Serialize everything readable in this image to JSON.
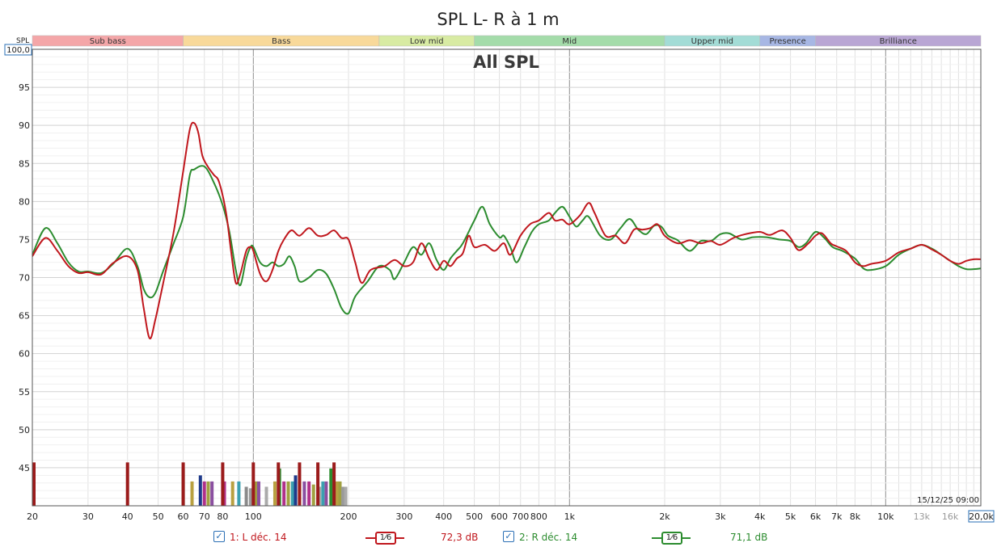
{
  "title": "SPL L- R à 1 m",
  "overlay_label": "All SPL",
  "y_axis_unit": "SPL",
  "y_top_value": "100,0",
  "x_right_value": "20,0k",
  "timestamp": "15/12/25 09:00",
  "bands": [
    {
      "label": "Sub bass",
      "from": 20,
      "to": 60,
      "color": "#f4a6a8"
    },
    {
      "label": "Bass",
      "from": 60,
      "to": 250,
      "color": "#f8d99a"
    },
    {
      "label": "Low mid",
      "from": 250,
      "to": 500,
      "color": "#d8eba3"
    },
    {
      "label": "Mid",
      "from": 500,
      "to": 2000,
      "color": "#a4dcaa"
    },
    {
      "label": "Upper mid",
      "from": 2000,
      "to": 4000,
      "color": "#a3dcd6"
    },
    {
      "label": "Presence",
      "from": 4000,
      "to": 6000,
      "color": "#a7b7e4"
    },
    {
      "label": "Brilliance",
      "from": 6000,
      "to": 20000,
      "color": "#b9a6d4"
    }
  ],
  "chart_data": {
    "type": "line",
    "title": "SPL L- R à 1 m",
    "xlabel": "",
    "ylabel": "SPL",
    "x_scale": "log",
    "xlim": [
      20,
      20000
    ],
    "ylim": [
      40,
      100
    ],
    "grid": true,
    "x_ticks": [
      {
        "v": 20,
        "label": "20"
      },
      {
        "v": 30,
        "label": "30"
      },
      {
        "v": 40,
        "label": "40"
      },
      {
        "v": 50,
        "label": "50"
      },
      {
        "v": 60,
        "label": "60"
      },
      {
        "v": 70,
        "label": "70"
      },
      {
        "v": 80,
        "label": "80"
      },
      {
        "v": 100,
        "label": "100"
      },
      {
        "v": 200,
        "label": "200"
      },
      {
        "v": 300,
        "label": "300"
      },
      {
        "v": 400,
        "label": "400"
      },
      {
        "v": 500,
        "label": "500"
      },
      {
        "v": 600,
        "label": "600"
      },
      {
        "v": 700,
        "label": "700"
      },
      {
        "v": 800,
        "label": "800"
      },
      {
        "v": 1000,
        "label": "1k"
      },
      {
        "v": 2000,
        "label": "2k"
      },
      {
        "v": 3000,
        "label": "3k"
      },
      {
        "v": 4000,
        "label": "4k"
      },
      {
        "v": 5000,
        "label": "5k"
      },
      {
        "v": 6000,
        "label": "6k"
      },
      {
        "v": 7000,
        "label": "7k"
      },
      {
        "v": 8000,
        "label": "8k"
      },
      {
        "v": 10000,
        "label": "10k"
      },
      {
        "v": 13000,
        "label": "13k",
        "muted": true
      },
      {
        "v": 16000,
        "label": "16k",
        "muted": true
      }
    ],
    "y_ticks": [
      45,
      50,
      55,
      60,
      65,
      70,
      75,
      80,
      85,
      90,
      95
    ],
    "series": [
      {
        "name": "1: L déc. 14",
        "color": "#c0171d",
        "smoothing": "1/6",
        "level": "72,3 dB",
        "points": [
          [
            20,
            72.8
          ],
          [
            22,
            75.2
          ],
          [
            24,
            73.5
          ],
          [
            26,
            71.5
          ],
          [
            28,
            70.6
          ],
          [
            30,
            70.7
          ],
          [
            33,
            70.4
          ],
          [
            36,
            71.9
          ],
          [
            40,
            72.8
          ],
          [
            43,
            71.0
          ],
          [
            45,
            66.0
          ],
          [
            47,
            62.0
          ],
          [
            49,
            64.5
          ],
          [
            52,
            69.5
          ],
          [
            56,
            76.0
          ],
          [
            60,
            84.0
          ],
          [
            63,
            89.5
          ],
          [
            65,
            90.3
          ],
          [
            67,
            89.0
          ],
          [
            69,
            86.0
          ],
          [
            72,
            84.5
          ],
          [
            75,
            83.5
          ],
          [
            78,
            82.5
          ],
          [
            82,
            78.5
          ],
          [
            85,
            73.5
          ],
          [
            88,
            69.3
          ],
          [
            91,
            70.5
          ],
          [
            95,
            73.5
          ],
          [
            98,
            74.0
          ],
          [
            100,
            73.5
          ],
          [
            105,
            70.5
          ],
          [
            110,
            69.5
          ],
          [
            115,
            71.0
          ],
          [
            120,
            73.5
          ],
          [
            125,
            75.0
          ],
          [
            132,
            76.2
          ],
          [
            140,
            75.5
          ],
          [
            150,
            76.5
          ],
          [
            160,
            75.5
          ],
          [
            170,
            75.6
          ],
          [
            180,
            76.2
          ],
          [
            190,
            75.2
          ],
          [
            200,
            75.0
          ],
          [
            210,
            72.0
          ],
          [
            220,
            69.3
          ],
          [
            235,
            71.0
          ],
          [
            260,
            71.5
          ],
          [
            280,
            72.3
          ],
          [
            300,
            71.5
          ],
          [
            320,
            72.0
          ],
          [
            340,
            74.5
          ],
          [
            360,
            72.5
          ],
          [
            380,
            71.0
          ],
          [
            400,
            72.2
          ],
          [
            420,
            71.5
          ],
          [
            440,
            72.5
          ],
          [
            460,
            73.2
          ],
          [
            480,
            75.5
          ],
          [
            500,
            74.0
          ],
          [
            540,
            74.3
          ],
          [
            580,
            73.5
          ],
          [
            620,
            74.5
          ],
          [
            650,
            73.0
          ],
          [
            700,
            75.5
          ],
          [
            750,
            77.0
          ],
          [
            800,
            77.5
          ],
          [
            860,
            78.5
          ],
          [
            900,
            77.5
          ],
          [
            950,
            77.6
          ],
          [
            1000,
            77.0
          ],
          [
            1080,
            78.2
          ],
          [
            1150,
            79.8
          ],
          [
            1200,
            78.5
          ],
          [
            1300,
            75.5
          ],
          [
            1400,
            75.5
          ],
          [
            1500,
            74.5
          ],
          [
            1600,
            76.3
          ],
          [
            1700,
            76.3
          ],
          [
            1800,
            76.5
          ],
          [
            1900,
            77.0
          ],
          [
            2000,
            75.5
          ],
          [
            2200,
            74.5
          ],
          [
            2400,
            74.9
          ],
          [
            2600,
            74.5
          ],
          [
            2800,
            74.8
          ],
          [
            3000,
            74.3
          ],
          [
            3300,
            75.2
          ],
          [
            3600,
            75.7
          ],
          [
            4000,
            76.0
          ],
          [
            4300,
            75.6
          ],
          [
            4700,
            76.2
          ],
          [
            5000,
            75.2
          ],
          [
            5300,
            73.6
          ],
          [
            5700,
            74.5
          ],
          [
            6000,
            75.5
          ],
          [
            6300,
            75.8
          ],
          [
            6700,
            74.5
          ],
          [
            7000,
            74.1
          ],
          [
            7500,
            73.5
          ],
          [
            8000,
            72.0
          ],
          [
            8500,
            71.5
          ],
          [
            9000,
            71.8
          ],
          [
            10000,
            72.2
          ],
          [
            11000,
            73.3
          ],
          [
            12000,
            73.8
          ],
          [
            13000,
            74.3
          ],
          [
            14000,
            73.7
          ],
          [
            15000,
            73.0
          ],
          [
            16000,
            72.2
          ],
          [
            17000,
            71.8
          ],
          [
            18000,
            72.2
          ],
          [
            19000,
            72.4
          ],
          [
            20000,
            72.4
          ]
        ]
      },
      {
        "name": "2: R déc. 14",
        "color": "#2c8c2f",
        "smoothing": "1/6",
        "level": "71,1 dB",
        "points": [
          [
            20,
            73.0
          ],
          [
            22,
            76.5
          ],
          [
            24,
            74.5
          ],
          [
            26,
            72.0
          ],
          [
            28,
            70.8
          ],
          [
            30,
            70.8
          ],
          [
            33,
            70.6
          ],
          [
            36,
            71.8
          ],
          [
            40,
            73.8
          ],
          [
            43,
            71.5
          ],
          [
            45,
            68.5
          ],
          [
            47,
            67.4
          ],
          [
            49,
            68.0
          ],
          [
            52,
            71.0
          ],
          [
            56,
            74.5
          ],
          [
            60,
            78.0
          ],
          [
            63,
            83.5
          ],
          [
            65,
            84.2
          ],
          [
            70,
            84.6
          ],
          [
            75,
            82.5
          ],
          [
            80,
            79.5
          ],
          [
            84,
            76.0
          ],
          [
            88,
            71.0
          ],
          [
            91,
            69.0
          ],
          [
            95,
            72.5
          ],
          [
            98,
            74.0
          ],
          [
            100,
            74.0
          ],
          [
            105,
            72.0
          ],
          [
            110,
            71.5
          ],
          [
            115,
            72.0
          ],
          [
            120,
            71.5
          ],
          [
            125,
            71.8
          ],
          [
            130,
            72.8
          ],
          [
            135,
            71.5
          ],
          [
            140,
            69.5
          ],
          [
            150,
            70.0
          ],
          [
            160,
            71.0
          ],
          [
            170,
            70.5
          ],
          [
            180,
            68.5
          ],
          [
            190,
            66.0
          ],
          [
            200,
            65.3
          ],
          [
            210,
            67.5
          ],
          [
            230,
            69.5
          ],
          [
            250,
            71.5
          ],
          [
            270,
            71.0
          ],
          [
            280,
            69.8
          ],
          [
            300,
            72.0
          ],
          [
            320,
            74.0
          ],
          [
            340,
            73.0
          ],
          [
            360,
            74.5
          ],
          [
            380,
            72.3
          ],
          [
            400,
            71.0
          ],
          [
            420,
            72.5
          ],
          [
            440,
            73.5
          ],
          [
            460,
            74.5
          ],
          [
            500,
            77.5
          ],
          [
            530,
            79.3
          ],
          [
            560,
            77.0
          ],
          [
            600,
            75.3
          ],
          [
            620,
            75.5
          ],
          [
            650,
            74.0
          ],
          [
            680,
            72.0
          ],
          [
            720,
            74.0
          ],
          [
            760,
            76.0
          ],
          [
            800,
            77.0
          ],
          [
            860,
            77.5
          ],
          [
            900,
            78.5
          ],
          [
            950,
            79.3
          ],
          [
            1000,
            78.0
          ],
          [
            1050,
            76.7
          ],
          [
            1100,
            77.5
          ],
          [
            1150,
            78.0
          ],
          [
            1250,
            75.5
          ],
          [
            1350,
            75.0
          ],
          [
            1450,
            76.5
          ],
          [
            1550,
            77.7
          ],
          [
            1650,
            76.3
          ],
          [
            1750,
            75.7
          ],
          [
            1850,
            76.8
          ],
          [
            1950,
            76.7
          ],
          [
            2050,
            75.5
          ],
          [
            2200,
            74.9
          ],
          [
            2400,
            73.5
          ],
          [
            2600,
            74.8
          ],
          [
            2800,
            74.8
          ],
          [
            3000,
            75.7
          ],
          [
            3200,
            75.8
          ],
          [
            3500,
            75.0
          ],
          [
            3800,
            75.3
          ],
          [
            4200,
            75.3
          ],
          [
            4600,
            75.0
          ],
          [
            5000,
            74.8
          ],
          [
            5300,
            74.0
          ],
          [
            5600,
            74.5
          ],
          [
            6000,
            76.0
          ],
          [
            6400,
            75.2
          ],
          [
            6800,
            74.0
          ],
          [
            7300,
            73.5
          ],
          [
            8000,
            72.5
          ],
          [
            8500,
            71.2
          ],
          [
            9000,
            71.0
          ],
          [
            10000,
            71.5
          ],
          [
            11000,
            73.0
          ],
          [
            12000,
            73.8
          ],
          [
            13000,
            74.3
          ],
          [
            14000,
            73.8
          ],
          [
            15000,
            73.0
          ],
          [
            16000,
            72.2
          ],
          [
            17000,
            71.5
          ],
          [
            18000,
            71.1
          ],
          [
            19000,
            71.1
          ],
          [
            20000,
            71.2
          ]
        ]
      }
    ],
    "markers": {
      "description_free": true,
      "dark_red_bars": [
        20,
        40,
        60,
        80,
        100,
        120,
        140,
        160,
        180
      ],
      "colored_bars": [
        {
          "f": 60,
          "h": 44.9,
          "c": "#2c8c2f"
        },
        {
          "f": 64,
          "h": 43.2,
          "c": "#b8a040"
        },
        {
          "f": 68,
          "h": 44.0,
          "c": "#1f3a8a"
        },
        {
          "f": 70,
          "h": 43.2,
          "c": "#b0308a"
        },
        {
          "f": 72,
          "h": 43.2,
          "c": "#a0a040"
        },
        {
          "f": 74,
          "h": 43.2,
          "c": "#8a4fa0"
        },
        {
          "f": 81,
          "h": 43.2,
          "c": "#b0308a"
        },
        {
          "f": 86,
          "h": 43.2,
          "c": "#b8a040"
        },
        {
          "f": 90,
          "h": 43.2,
          "c": "#3ba0b0"
        },
        {
          "f": 95,
          "h": 42.5,
          "c": "#8a8a8a"
        },
        {
          "f": 98,
          "h": 42.3,
          "c": "#999999"
        },
        {
          "f": 102,
          "h": 43.2,
          "c": "#a0a040"
        },
        {
          "f": 104,
          "h": 43.2,
          "c": "#8a4fa0"
        },
        {
          "f": 110,
          "h": 42.5,
          "c": "#aaaaaa"
        },
        {
          "f": 117,
          "h": 43.2,
          "c": "#b8a040"
        },
        {
          "f": 121,
          "h": 44.9,
          "c": "#2c8c2f"
        },
        {
          "f": 125,
          "h": 43.2,
          "c": "#b0308a"
        },
        {
          "f": 129,
          "h": 43.2,
          "c": "#a0a040"
        },
        {
          "f": 133,
          "h": 43.2,
          "c": "#3ba0b0"
        },
        {
          "f": 136,
          "h": 44.0,
          "c": "#1f3a8a"
        },
        {
          "f": 140,
          "h": 43.2,
          "c": "#b8a040"
        },
        {
          "f": 145,
          "h": 43.2,
          "c": "#8a4fa0"
        },
        {
          "f": 150,
          "h": 43.2,
          "c": "#b0308a"
        },
        {
          "f": 155,
          "h": 42.8,
          "c": "#a0a040"
        },
        {
          "f": 162,
          "h": 42.5,
          "c": "#aaaaaa"
        },
        {
          "f": 166,
          "h": 43.2,
          "c": "#3ba0b0"
        },
        {
          "f": 170,
          "h": 43.2,
          "c": "#8a4fa0"
        },
        {
          "f": 176,
          "h": 44.9,
          "c": "#2c8c2f"
        },
        {
          "f": 184,
          "h": 43.2,
          "c": "#b8a040"
        },
        {
          "f": 188,
          "h": 43.2,
          "c": "#a0a040"
        },
        {
          "f": 192,
          "h": 42.5,
          "c": "#999999"
        },
        {
          "f": 196,
          "h": 42.5,
          "c": "#aaaaaa"
        }
      ]
    }
  },
  "legend": {
    "series1_label": "1: L déc. 14",
    "series1_smoothing": "1⁄6",
    "series1_level": "72,3 dB",
    "series2_label": "2: R déc. 14",
    "series2_smoothing": "1⁄6",
    "series2_level": "71,1 dB",
    "check": "✓"
  }
}
